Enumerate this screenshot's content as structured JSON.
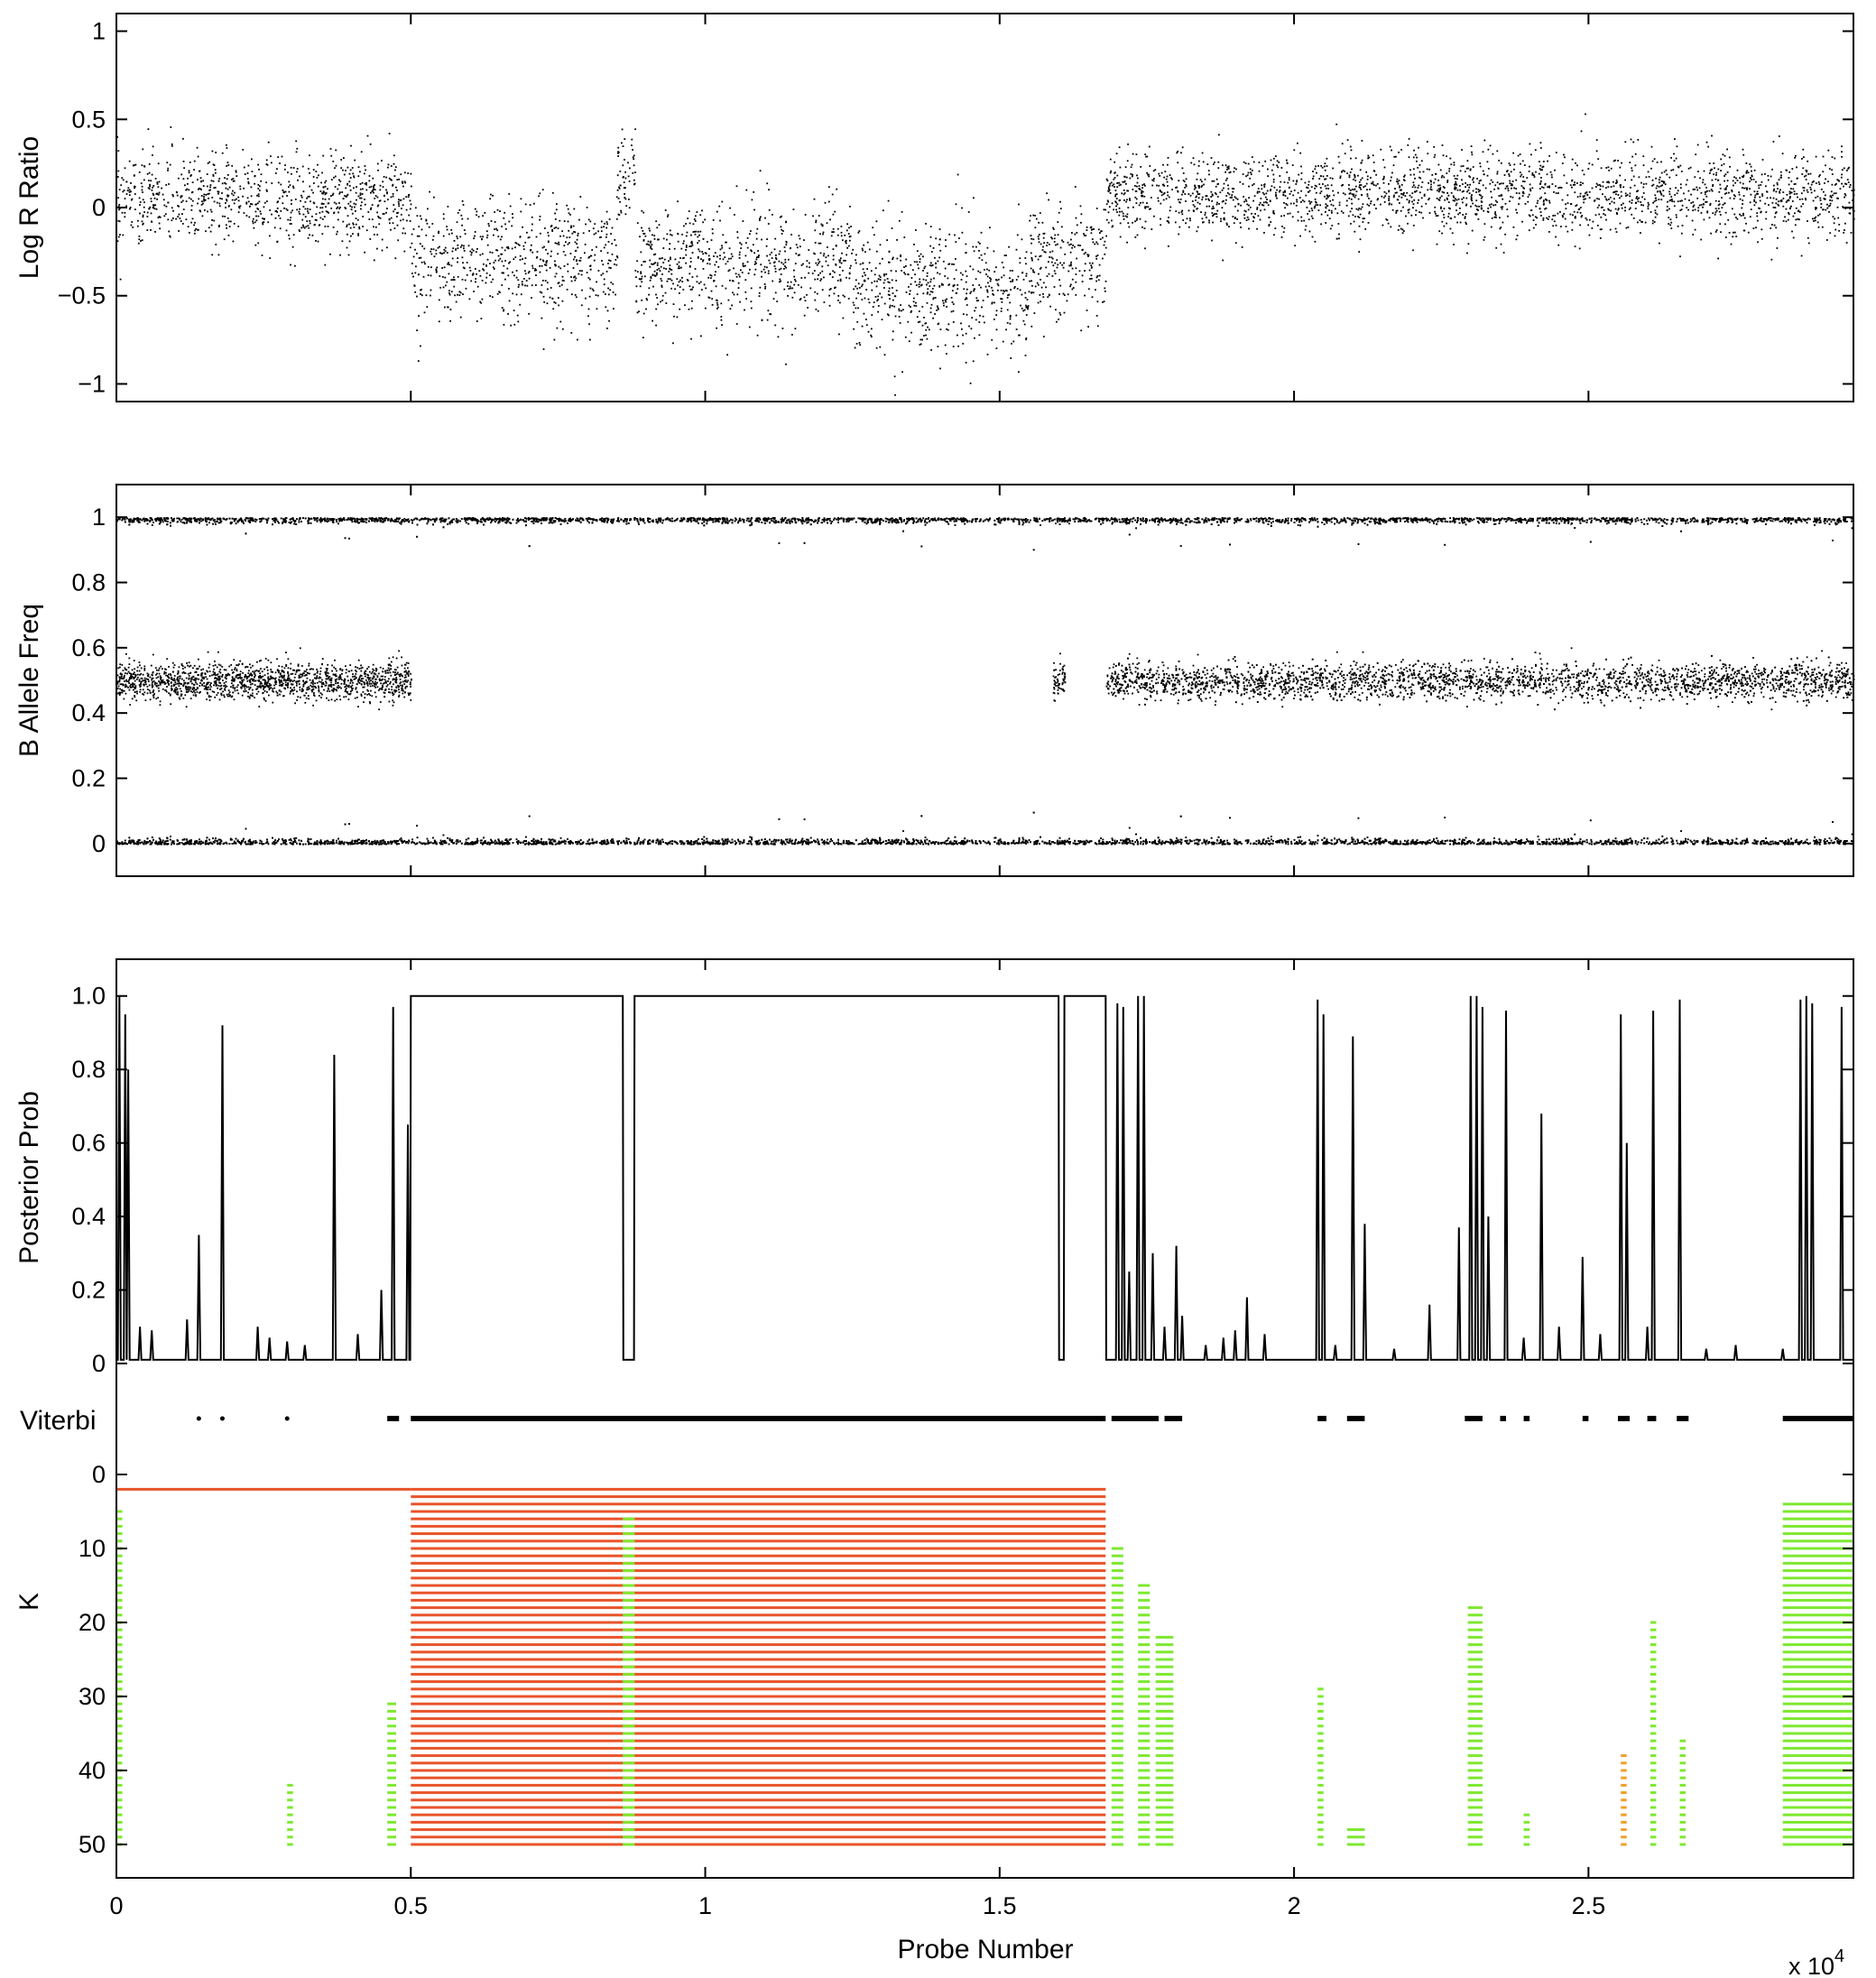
{
  "chart_data": [
    {
      "type": "scatter",
      "ylabel": "Log R Ratio",
      "xlim": [
        0,
        29500
      ],
      "ylim": [
        -1.1,
        1.1
      ],
      "yticks": [
        -1,
        -0.5,
        0,
        0.5,
        1
      ],
      "ytick_labels": [
        "−1",
        "−0.5",
        "0",
        "0.5",
        "1"
      ],
      "xticks": [
        0,
        5000,
        10000,
        15000,
        20000,
        25000
      ],
      "point_color": "#000000",
      "segments": [
        {
          "x": [
            0,
            5000
          ],
          "mean": 0.05,
          "sd": 0.13
        },
        {
          "x": [
            5000,
            8500
          ],
          "mean": -0.3,
          "sd": 0.17
        },
        {
          "x": [
            8500,
            8800
          ],
          "mean": 0.15,
          "sd": 0.15
        },
        {
          "x": [
            8800,
            12500
          ],
          "mean": -0.32,
          "sd": 0.17
        },
        {
          "x": [
            12500,
            15500
          ],
          "mean": -0.45,
          "sd": 0.18
        },
        {
          "x": [
            15500,
            16800
          ],
          "mean": -0.3,
          "sd": 0.17
        },
        {
          "x": [
            16800,
            29500
          ],
          "mean": 0.08,
          "sd": 0.12
        }
      ]
    },
    {
      "type": "scatter",
      "ylabel": "B Allele Freq",
      "xlim": [
        0,
        29500
      ],
      "ylim": [
        -0.1,
        1.1
      ],
      "yticks": [
        0,
        0.2,
        0.4,
        0.6,
        0.8,
        1
      ],
      "ytick_labels": [
        "0",
        "0.2",
        "0.4",
        "0.6",
        "0.8",
        "1"
      ],
      "xticks": [
        0,
        5000,
        10000,
        15000,
        20000,
        25000
      ],
      "point_color": "#000000",
      "bands": [
        {
          "y": 1.0,
          "x": [
            0,
            29500
          ]
        },
        {
          "y": 0.0,
          "x": [
            0,
            29500
          ]
        },
        {
          "y": 0.5,
          "x": [
            0,
            5000
          ]
        },
        {
          "y": 0.5,
          "x": [
            15900,
            16100
          ]
        },
        {
          "y": 0.5,
          "x": [
            16800,
            29500
          ]
        }
      ]
    },
    {
      "type": "line",
      "ylabel": "Posterior Prob",
      "xlim": [
        0,
        29500
      ],
      "ylim": [
        0,
        1.1
      ],
      "yticks": [
        0,
        0.2,
        0.4,
        0.6,
        0.8,
        1.0
      ],
      "ytick_labels": [
        "0",
        "0.2",
        "0.4",
        "0.6",
        "0.8",
        "1.0"
      ],
      "xticks": [
        0,
        5000,
        10000,
        15000,
        20000,
        25000
      ],
      "line_color": "#000000",
      "baseline": 0.01,
      "plateaus": [
        {
          "x": [
            5000,
            8600
          ],
          "y": 1.0
        },
        {
          "x": [
            8800,
            16000
          ],
          "y": 1.0
        },
        {
          "x": [
            16100,
            16800
          ],
          "y": 1.0
        }
      ],
      "spikes": [
        {
          "x": 50,
          "y": 1.0
        },
        {
          "x": 150,
          "y": 0.95
        },
        {
          "x": 200,
          "y": 0.8
        },
        {
          "x": 400,
          "y": 0.1
        },
        {
          "x": 600,
          "y": 0.09
        },
        {
          "x": 1200,
          "y": 0.12
        },
        {
          "x": 1400,
          "y": 0.35
        },
        {
          "x": 1800,
          "y": 0.92
        },
        {
          "x": 2400,
          "y": 0.1
        },
        {
          "x": 2600,
          "y": 0.07
        },
        {
          "x": 2900,
          "y": 0.06
        },
        {
          "x": 3200,
          "y": 0.05
        },
        {
          "x": 3700,
          "y": 0.84
        },
        {
          "x": 4100,
          "y": 0.08
        },
        {
          "x": 4500,
          "y": 0.2
        },
        {
          "x": 4700,
          "y": 0.97
        },
        {
          "x": 4950,
          "y": 0.65
        },
        {
          "x": 17000,
          "y": 0.98
        },
        {
          "x": 17100,
          "y": 0.97
        },
        {
          "x": 17200,
          "y": 0.25
        },
        {
          "x": 17350,
          "y": 1.0
        },
        {
          "x": 17450,
          "y": 1.0
        },
        {
          "x": 17600,
          "y": 0.3
        },
        {
          "x": 17800,
          "y": 0.1
        },
        {
          "x": 18000,
          "y": 0.32
        },
        {
          "x": 18100,
          "y": 0.13
        },
        {
          "x": 18500,
          "y": 0.05
        },
        {
          "x": 18800,
          "y": 0.07
        },
        {
          "x": 19000,
          "y": 0.09
        },
        {
          "x": 19200,
          "y": 0.18
        },
        {
          "x": 19500,
          "y": 0.08
        },
        {
          "x": 20400,
          "y": 0.99
        },
        {
          "x": 20500,
          "y": 0.95
        },
        {
          "x": 20700,
          "y": 0.05
        },
        {
          "x": 21000,
          "y": 0.89
        },
        {
          "x": 21200,
          "y": 0.38
        },
        {
          "x": 21700,
          "y": 0.04
        },
        {
          "x": 22300,
          "y": 0.16
        },
        {
          "x": 22800,
          "y": 0.37
        },
        {
          "x": 23000,
          "y": 1.0
        },
        {
          "x": 23100,
          "y": 1.0
        },
        {
          "x": 23200,
          "y": 0.97
        },
        {
          "x": 23300,
          "y": 0.4
        },
        {
          "x": 23600,
          "y": 0.96
        },
        {
          "x": 23900,
          "y": 0.07
        },
        {
          "x": 24200,
          "y": 0.68
        },
        {
          "x": 24500,
          "y": 0.1
        },
        {
          "x": 24900,
          "y": 0.29
        },
        {
          "x": 25200,
          "y": 0.08
        },
        {
          "x": 25550,
          "y": 0.95
        },
        {
          "x": 25650,
          "y": 0.6
        },
        {
          "x": 26000,
          "y": 0.1
        },
        {
          "x": 26100,
          "y": 0.96
        },
        {
          "x": 26550,
          "y": 0.99
        },
        {
          "x": 27000,
          "y": 0.04
        },
        {
          "x": 27500,
          "y": 0.05
        },
        {
          "x": 28300,
          "y": 0.04
        },
        {
          "x": 28600,
          "y": 0.99
        },
        {
          "x": 28700,
          "y": 1.0
        },
        {
          "x": 28800,
          "y": 0.98
        },
        {
          "x": 29300,
          "y": 0.97
        }
      ]
    },
    {
      "type": "scatter",
      "ylabel": "Viterbi",
      "xlim": [
        0,
        29500
      ],
      "point_color": "#000000",
      "dots": [
        1400,
        1800,
        2900
      ],
      "segments": [
        [
          4600,
          4800
        ],
        [
          5000,
          16800
        ],
        [
          16900,
          17700
        ],
        [
          17800,
          18100
        ],
        [
          20400,
          20550
        ],
        [
          20900,
          21200
        ],
        [
          22900,
          23200
        ],
        [
          23500,
          23600
        ],
        [
          23900,
          24000
        ],
        [
          24900,
          25000
        ],
        [
          25500,
          25700
        ],
        [
          26000,
          26150
        ],
        [
          26500,
          26700
        ],
        [
          28300,
          29500
        ]
      ]
    },
    {
      "type": "heatmap",
      "ylabel": "K",
      "xlabel": "Probe Number",
      "x_multiplier_label": "x 10",
      "x_multiplier_exponent": "4",
      "xlim": [
        0,
        29500
      ],
      "ylim": [
        50,
        0
      ],
      "yticks": [
        0,
        10,
        20,
        30,
        40,
        50
      ],
      "ytick_labels": [
        "0",
        "10",
        "20",
        "30",
        "40",
        "50"
      ],
      "xticks": [
        0,
        5000,
        10000,
        15000,
        20000,
        25000
      ],
      "xtick_labels": [
        "0",
        "0.5",
        "1",
        "1.5",
        "2",
        "2.5"
      ],
      "colors": {
        "red": "#E8542A",
        "green": "#7EE830",
        "orange": "#F0A028"
      },
      "regions": [
        {
          "color": "red",
          "x": [
            0,
            5000
          ],
          "k": [
            2,
            2
          ]
        },
        {
          "color": "red",
          "x": [
            5000,
            16800
          ],
          "k": [
            2,
            50
          ]
        },
        {
          "color": "green",
          "x": [
            0,
            100
          ],
          "k": [
            5,
            50
          ]
        },
        {
          "color": "green",
          "x": [
            2900,
            3000
          ],
          "k": [
            42,
            50
          ]
        },
        {
          "color": "green",
          "x": [
            4600,
            4750
          ],
          "k": [
            31,
            50
          ]
        },
        {
          "color": "green",
          "x": [
            8600,
            8800
          ],
          "k": [
            6,
            50
          ]
        },
        {
          "color": "green",
          "x": [
            16900,
            17100
          ],
          "k": [
            10,
            50
          ]
        },
        {
          "color": "green",
          "x": [
            17350,
            17550
          ],
          "k": [
            15,
            50
          ]
        },
        {
          "color": "green",
          "x": [
            17650,
            17950
          ],
          "k": [
            22,
            50
          ]
        },
        {
          "color": "green",
          "x": [
            20400,
            20500
          ],
          "k": [
            29,
            50
          ]
        },
        {
          "color": "green",
          "x": [
            20900,
            21200
          ],
          "k": [
            48,
            50
          ]
        },
        {
          "color": "green",
          "x": [
            22950,
            23200
          ],
          "k": [
            18,
            50
          ]
        },
        {
          "color": "green",
          "x": [
            23900,
            24000
          ],
          "k": [
            46,
            50
          ]
        },
        {
          "color": "orange",
          "x": [
            25550,
            25650
          ],
          "k": [
            38,
            50
          ]
        },
        {
          "color": "green",
          "x": [
            26050,
            26150
          ],
          "k": [
            20,
            50
          ]
        },
        {
          "color": "green",
          "x": [
            26550,
            26650
          ],
          "k": [
            36,
            50
          ]
        },
        {
          "color": "green",
          "x": [
            28300,
            29500
          ],
          "k": [
            4,
            50
          ]
        }
      ]
    }
  ]
}
